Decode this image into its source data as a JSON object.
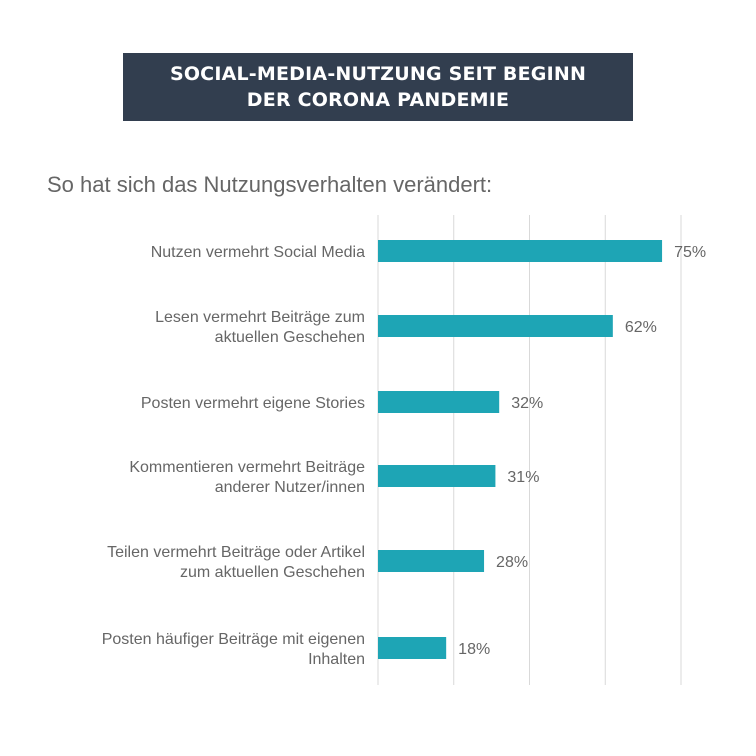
{
  "header": {
    "title_line1": "SOCIAL-MEDIA-NUTZUNG SEIT BEGINN",
    "title_line2": "DER CORONA PANDEMIE"
  },
  "chart_data": {
    "type": "bar",
    "orientation": "horizontal",
    "title": "SOCIAL-MEDIA-NUTZUNG SEIT BEGINN DER CORONA PANDEMIE",
    "subtitle": "So hat sich das Nutzungsverhalten verändert:",
    "categories": [
      [
        "Nutzen vermehrt Social Media"
      ],
      [
        "Lesen vermehrt Beiträge zum",
        "aktuellen Geschehen"
      ],
      [
        "Posten vermehrt eigene Stories"
      ],
      [
        "Kommentieren vermehrt Beiträge",
        "anderer Nutzer/innen"
      ],
      [
        "Teilen vermehrt Beiträge oder Artikel",
        "zum aktuellen Geschehen"
      ],
      [
        "Posten häufiger Beiträge mit eigenen",
        "Inhalten"
      ]
    ],
    "values": [
      75,
      62,
      32,
      31,
      28,
      18
    ],
    "value_labels": [
      "75%",
      "62%",
      "32%",
      "31%",
      "28%",
      "18%"
    ],
    "unit": "%",
    "xlim": [
      0,
      80
    ],
    "grid": true,
    "bar_color": "#1ea5b5",
    "grid_color": "#d9d9d9"
  }
}
